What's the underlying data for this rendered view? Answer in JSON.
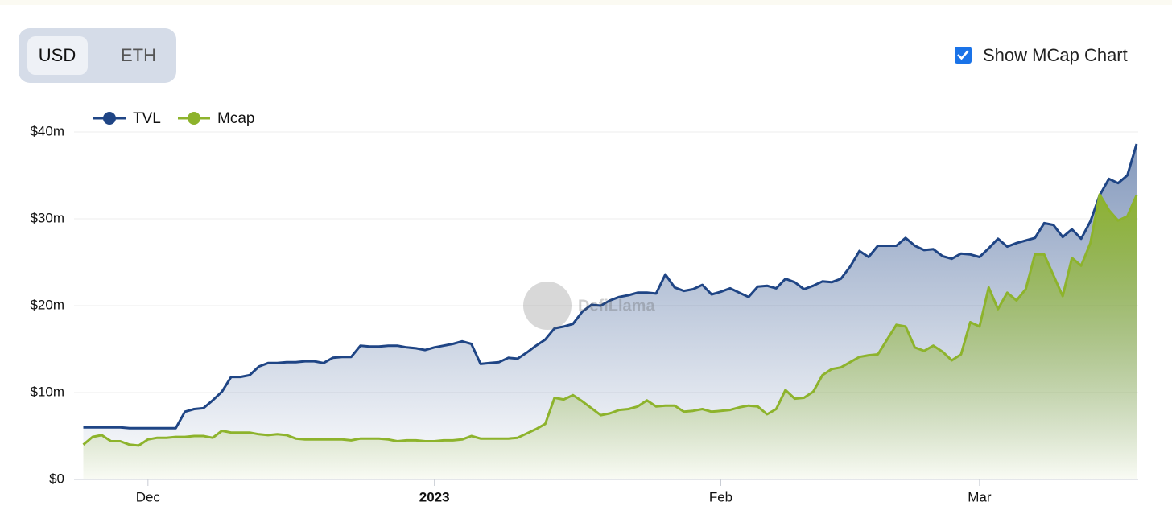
{
  "controls": {
    "currency_options": [
      "USD",
      "ETH"
    ],
    "selected": "USD",
    "checkbox_label": "Show MCap Chart",
    "checkbox_checked": true
  },
  "watermark": "DefiLlama",
  "chart_data": {
    "type": "area",
    "x": [
      "2022-11-24",
      "2022-11-25",
      "2022-11-26",
      "2022-11-27",
      "2022-11-28",
      "2022-11-29",
      "2022-11-30",
      "2022-12-01",
      "2022-12-02",
      "2022-12-03",
      "2022-12-04",
      "2022-12-05",
      "2022-12-06",
      "2022-12-07",
      "2022-12-08",
      "2022-12-09",
      "2022-12-10",
      "2022-12-11",
      "2022-12-12",
      "2022-12-13",
      "2022-12-14",
      "2022-12-15",
      "2022-12-16",
      "2022-12-17",
      "2022-12-18",
      "2022-12-19",
      "2022-12-20",
      "2022-12-21",
      "2022-12-22",
      "2022-12-23",
      "2022-12-24",
      "2022-12-25",
      "2022-12-26",
      "2022-12-27",
      "2022-12-28",
      "2022-12-29",
      "2022-12-30",
      "2022-12-31",
      "2023-01-01",
      "2023-01-02",
      "2023-01-03",
      "2023-01-04",
      "2023-01-05",
      "2023-01-06",
      "2023-01-07",
      "2023-01-08",
      "2023-01-09",
      "2023-01-10",
      "2023-01-11",
      "2023-01-12",
      "2023-01-13",
      "2023-01-14",
      "2023-01-15",
      "2023-01-16",
      "2023-01-17",
      "2023-01-18",
      "2023-01-19",
      "2023-01-20",
      "2023-01-21",
      "2023-01-22",
      "2023-01-23",
      "2023-01-24",
      "2023-01-25",
      "2023-01-26",
      "2023-01-27",
      "2023-01-28",
      "2023-01-29",
      "2023-01-30",
      "2023-01-31",
      "2023-02-01",
      "2023-02-02",
      "2023-02-03",
      "2023-02-04",
      "2023-02-05",
      "2023-02-06",
      "2023-02-07",
      "2023-02-08",
      "2023-02-09",
      "2023-02-10",
      "2023-02-11",
      "2023-02-12",
      "2023-02-13",
      "2023-02-14",
      "2023-02-15",
      "2023-02-16",
      "2023-02-17",
      "2023-02-18",
      "2023-02-19",
      "2023-02-20",
      "2023-02-21",
      "2023-02-22",
      "2023-02-23",
      "2023-02-24",
      "2023-02-25",
      "2023-02-26",
      "2023-02-27",
      "2023-02-28",
      "2023-03-01",
      "2023-03-02",
      "2023-03-03",
      "2023-03-04",
      "2023-03-05",
      "2023-03-06",
      "2023-03-07",
      "2023-03-08",
      "2023-03-09",
      "2023-03-10",
      "2023-03-11",
      "2023-03-12",
      "2023-03-13",
      "2023-03-14",
      "2023-03-15",
      "2023-03-16",
      "2023-03-17",
      "2023-03-18"
    ],
    "series": [
      {
        "name": "TVL",
        "color": "#1f4585",
        "values": [
          6.0,
          6.0,
          6.0,
          6.0,
          6.0,
          5.9,
          5.9,
          5.9,
          5.9,
          5.9,
          5.9,
          7.8,
          8.1,
          8.2,
          9.1,
          10.1,
          11.8,
          11.8,
          12.0,
          13.0,
          13.4,
          13.4,
          13.5,
          13.5,
          13.6,
          13.6,
          13.4,
          14.0,
          14.1,
          14.1,
          15.4,
          15.3,
          15.3,
          15.4,
          15.4,
          15.2,
          15.1,
          14.9,
          15.2,
          15.4,
          15.6,
          15.9,
          15.6,
          13.3,
          13.4,
          13.5,
          14.0,
          13.9,
          14.6,
          15.4,
          16.1,
          17.4,
          17.6,
          17.9,
          19.3,
          20.1,
          20.0,
          20.6,
          21.0,
          21.2,
          21.5,
          21.5,
          21.4,
          23.6,
          22.1,
          21.7,
          21.9,
          22.4,
          21.3,
          21.6,
          22.0,
          21.5,
          21.0,
          22.2,
          22.3,
          22.0,
          23.1,
          22.7,
          21.9,
          22.3,
          22.8,
          22.7,
          23.1,
          24.5,
          26.3,
          25.6,
          26.9,
          26.9,
          26.9,
          27.8,
          26.9,
          26.4,
          26.5,
          25.7,
          25.4,
          26.0,
          25.9,
          25.6,
          26.6,
          27.7,
          26.8,
          27.2,
          27.5,
          27.8,
          29.5,
          29.3,
          27.9,
          28.8,
          27.7,
          29.7,
          32.7,
          34.6,
          34.1,
          35.0,
          38.6
        ]
      },
      {
        "name": "Mcap",
        "color": "#8db32c",
        "values": [
          4.0,
          4.9,
          5.1,
          4.4,
          4.4,
          4.0,
          3.9,
          4.6,
          4.8,
          4.8,
          4.9,
          4.9,
          5.0,
          5.0,
          4.8,
          5.6,
          5.4,
          5.4,
          5.4,
          5.2,
          5.1,
          5.2,
          5.1,
          4.7,
          4.6,
          4.6,
          4.6,
          4.6,
          4.6,
          4.5,
          4.7,
          4.7,
          4.7,
          4.6,
          4.4,
          4.5,
          4.5,
          4.4,
          4.4,
          4.5,
          4.5,
          4.6,
          5.0,
          4.7,
          4.7,
          4.7,
          4.7,
          4.8,
          5.3,
          5.8,
          6.4,
          9.4,
          9.2,
          9.7,
          9.0,
          8.2,
          7.4,
          7.6,
          8.0,
          8.1,
          8.4,
          9.1,
          8.4,
          8.5,
          8.5,
          7.8,
          7.9,
          8.1,
          7.8,
          7.9,
          8.0,
          8.3,
          8.5,
          8.4,
          7.5,
          8.1,
          10.3,
          9.3,
          9.4,
          10.1,
          12.0,
          12.7,
          12.9,
          13.5,
          14.1,
          14.3,
          14.4,
          16.1,
          17.8,
          17.6,
          15.2,
          14.8,
          15.4,
          14.7,
          13.7,
          14.4,
          18.1,
          17.6,
          22.1,
          19.6,
          21.5,
          20.6,
          21.9,
          25.9,
          25.9,
          23.5,
          21.1,
          25.5,
          24.6,
          27.2,
          32.8,
          31.0,
          29.8,
          30.3,
          32.7
        ]
      }
    ],
    "xlim": [
      "2022-11-23",
      "2023-03-18"
    ],
    "xticks": [
      {
        "value": "2022-12-01",
        "label": "Dec"
      },
      {
        "value": "2023-01-01",
        "label": "2023"
      },
      {
        "value": "2023-02-01",
        "label": "Feb"
      },
      {
        "value": "2023-03-01",
        "label": "Mar"
      }
    ],
    "ylim": [
      0,
      40
    ],
    "yticks": [
      {
        "value": 0,
        "label": "$0"
      },
      {
        "value": 10,
        "label": "$10m"
      },
      {
        "value": 20,
        "label": "$20m"
      },
      {
        "value": 30,
        "label": "$30m"
      },
      {
        "value": 40,
        "label": "$40m"
      }
    ],
    "grid": true,
    "legend": "top-left"
  }
}
